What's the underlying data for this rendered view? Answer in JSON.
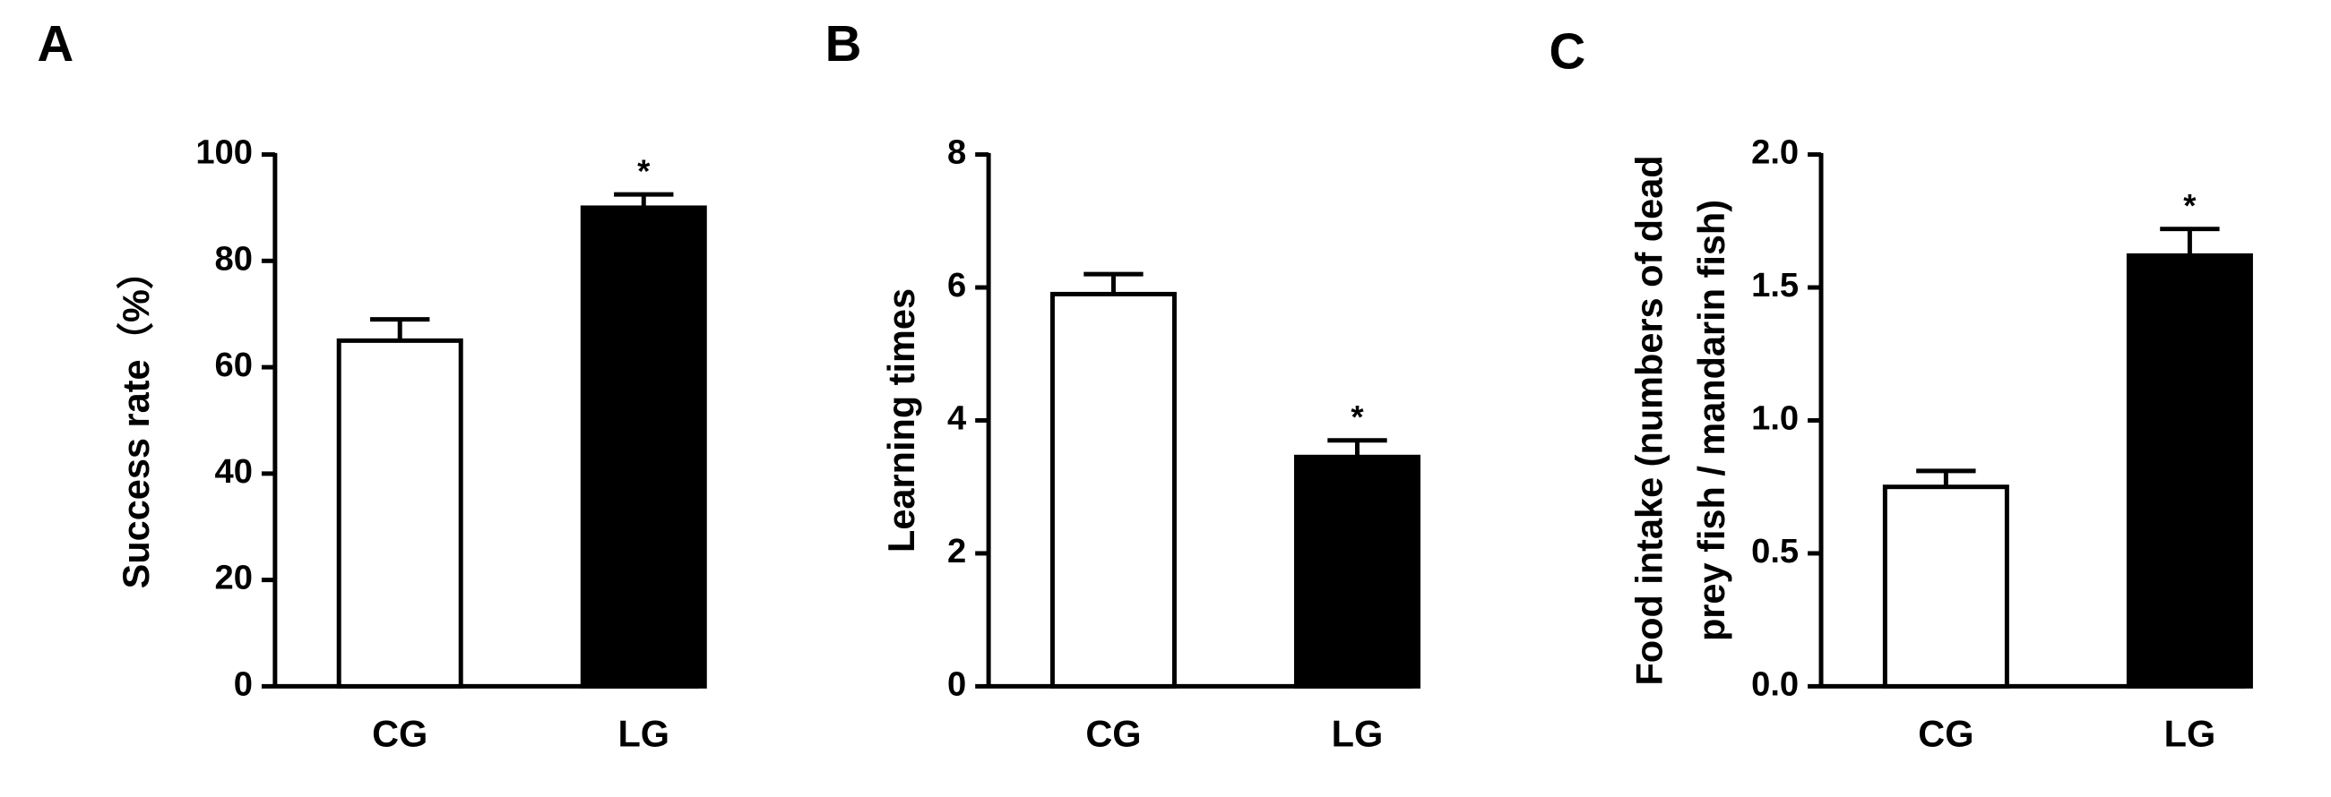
{
  "chart_data": [
    {
      "type": "bar",
      "panel": "A",
      "ylabel": "Success rate（%）",
      "categories": [
        "CG",
        "LG"
      ],
      "values": [
        65,
        90
      ],
      "errors": [
        4,
        2.5
      ],
      "colors": [
        "#ffffff",
        "#000000"
      ],
      "significance": [
        null,
        "*"
      ],
      "ylim": [
        0,
        100
      ],
      "yticks": [
        0,
        20,
        40,
        60,
        80,
        100
      ]
    },
    {
      "type": "bar",
      "panel": "B",
      "ylabel": "Learning times",
      "categories": [
        "CG",
        "LG"
      ],
      "values": [
        5.9,
        3.45
      ],
      "errors": [
        0.3,
        0.25
      ],
      "colors": [
        "#ffffff",
        "#000000"
      ],
      "significance": [
        null,
        "*"
      ],
      "ylim": [
        0,
        8
      ],
      "yticks": [
        0,
        2,
        4,
        6,
        8
      ]
    },
    {
      "type": "bar",
      "panel": "C",
      "ylabel": [
        "Food intake (numbers of dead",
        "prey fish / mandarin fish)"
      ],
      "categories": [
        "CG",
        "LG"
      ],
      "values": [
        0.75,
        1.62
      ],
      "errors": [
        0.06,
        0.1
      ],
      "colors": [
        "#ffffff",
        "#000000"
      ],
      "significance": [
        null,
        "*"
      ],
      "ylim": [
        0,
        2
      ],
      "yticks": [
        {
          "value": 0,
          "label": "0.0"
        },
        {
          "value": 0.5,
          "label": "0.5"
        },
        {
          "value": 1,
          "label": "1.0"
        },
        {
          "value": 1.5,
          "label": "1.5"
        },
        {
          "value": 2,
          "label": "2.0"
        }
      ]
    }
  ]
}
